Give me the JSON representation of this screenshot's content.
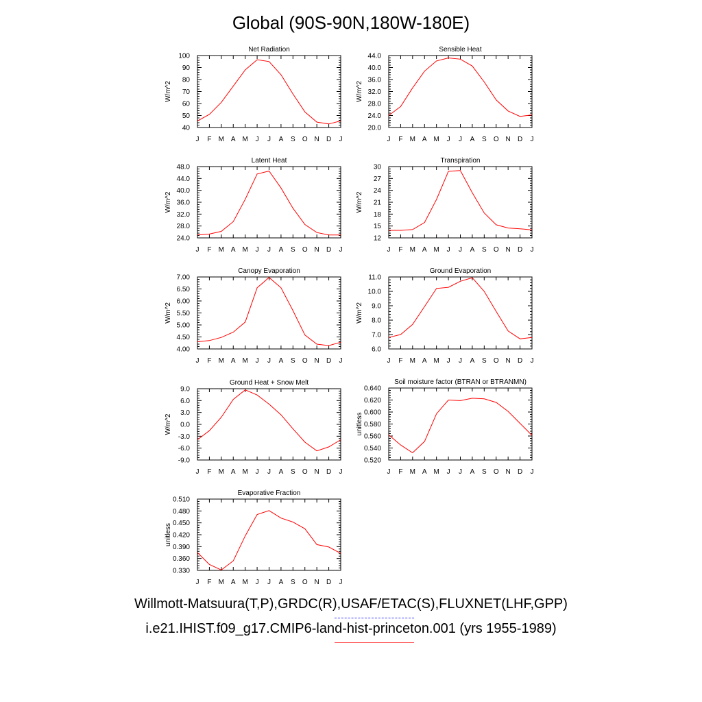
{
  "title": "Global (90S-90N,180W-180E)",
  "footer": {
    "obs_sources": "Willmott-Matsuura(T,P),GRDC(R),USAF/ETAC(S),FLUXNET(LHF,GPP)",
    "case": "i.e21.IHIST.f09_g17.CMIP6-land-hist-princeton.001 (yrs 1955-1989)"
  },
  "colors": {
    "model": "#ff0000",
    "obs": "#3333ff",
    "axis": "#000000"
  },
  "chart_data": [
    {
      "type": "line",
      "title": "Net Radiation",
      "ylabel": "W/m^2",
      "x": [
        "J",
        "F",
        "M",
        "A",
        "M",
        "J",
        "J",
        "A",
        "S",
        "O",
        "N",
        "D",
        "J"
      ],
      "ylim": [
        40,
        100
      ],
      "yticks": [
        "40",
        "50",
        "60",
        "70",
        "80",
        "90",
        "100"
      ],
      "series": [
        {
          "values": [
            45.5,
            51,
            61,
            74.5,
            88,
            96.5,
            95,
            84,
            68,
            53,
            44.5,
            43,
            45.5
          ]
        }
      ]
    },
    {
      "type": "line",
      "title": "Sensible Heat",
      "ylabel": "W/m^2",
      "x": [
        "J",
        "F",
        "M",
        "A",
        "M",
        "J",
        "J",
        "A",
        "S",
        "O",
        "N",
        "D",
        "J"
      ],
      "ylim": [
        20,
        44
      ],
      "yticks": [
        "20.0",
        "24.0",
        "28.0",
        "32.0",
        "36.0",
        "40.0",
        "44.0"
      ],
      "series": [
        {
          "values": [
            24,
            27,
            33.2,
            38.8,
            42.2,
            43.2,
            42.8,
            40.5,
            35.2,
            29.2,
            25.5,
            23.7,
            24.2
          ]
        }
      ]
    },
    {
      "type": "line",
      "title": "Latent Heat",
      "ylabel": "W/m^2",
      "x": [
        "J",
        "F",
        "M",
        "A",
        "M",
        "J",
        "J",
        "A",
        "S",
        "O",
        "N",
        "D",
        "J"
      ],
      "ylim": [
        24,
        48
      ],
      "yticks": [
        "24.0",
        "28.0",
        "32.0",
        "36.0",
        "40.0",
        "44.0",
        "48.0"
      ],
      "series": [
        {
          "values": [
            25,
            25.3,
            26.2,
            29.5,
            37,
            45.5,
            46.5,
            40.8,
            34,
            28.5,
            25.8,
            25,
            25
          ]
        }
      ]
    },
    {
      "type": "line",
      "title": "Transpiration",
      "ylabel": "W/m^2",
      "x": [
        "J",
        "F",
        "M",
        "A",
        "M",
        "J",
        "J",
        "A",
        "S",
        "O",
        "N",
        "D",
        "J"
      ],
      "ylim": [
        12,
        30
      ],
      "yticks": [
        "12",
        "15",
        "18",
        "21",
        "24",
        "27",
        "30"
      ],
      "series": [
        {
          "values": [
            13.9,
            13.9,
            14.1,
            15.9,
            21.7,
            28.8,
            29,
            23.4,
            18.3,
            15.3,
            14.5,
            14.3,
            14
          ]
        }
      ]
    },
    {
      "type": "line",
      "title": "Canopy Evaporation",
      "ylabel": "W/m^2",
      "x": [
        "J",
        "F",
        "M",
        "A",
        "M",
        "J",
        "J",
        "A",
        "S",
        "O",
        "N",
        "D",
        "J"
      ],
      "ylim": [
        4,
        7
      ],
      "yticks": [
        "4.00",
        "4.50",
        "5.00",
        "5.50",
        "6.00",
        "6.50",
        "7.00"
      ],
      "series": [
        {
          "values": [
            4.3,
            4.35,
            4.48,
            4.7,
            5.12,
            6.55,
            6.98,
            6.55,
            5.6,
            4.58,
            4.2,
            4.14,
            4.28
          ]
        }
      ]
    },
    {
      "type": "line",
      "title": "Ground Evaporation",
      "ylabel": "W/m^2",
      "x": [
        "J",
        "F",
        "M",
        "A",
        "M",
        "J",
        "J",
        "A",
        "S",
        "O",
        "N",
        "D",
        "J"
      ],
      "ylim": [
        6,
        11
      ],
      "yticks": [
        "6.0",
        "7.0",
        "8.0",
        "9.0",
        "10.0",
        "11.0"
      ],
      "series": [
        {
          "values": [
            6.8,
            7.0,
            7.7,
            8.95,
            10.2,
            10.28,
            10.7,
            10.95,
            10,
            8.6,
            7.25,
            6.7,
            6.8
          ]
        }
      ]
    },
    {
      "type": "line",
      "title": "Ground Heat + Snow Melt",
      "ylabel": "W/m^2",
      "x": [
        "J",
        "F",
        "M",
        "A",
        "M",
        "J",
        "J",
        "A",
        "S",
        "O",
        "N",
        "D",
        "J"
      ],
      "ylim": [
        -9,
        9
      ],
      "yticks": [
        "-9.0",
        "-6.0",
        "-3.0",
        "0.0",
        "3.0",
        "6.0",
        "9.0"
      ],
      "series": [
        {
          "values": [
            -3.9,
            -1.6,
            1.8,
            6.3,
            8.7,
            7.4,
            5.1,
            2.4,
            -1.1,
            -4.5,
            -6.7,
            -5.7,
            -3.9
          ]
        }
      ]
    },
    {
      "type": "line",
      "title": "Soil moisture factor (BTRAN or BTRANMN)",
      "ylabel": "unitless",
      "x": [
        "J",
        "F",
        "M",
        "A",
        "M",
        "J",
        "J",
        "A",
        "S",
        "O",
        "N",
        "D",
        "J"
      ],
      "ylim": [
        0.52,
        0.64
      ],
      "yticks": [
        "0.520",
        "0.540",
        "0.560",
        "0.580",
        "0.600",
        "0.620",
        "0.640"
      ],
      "series": [
        {
          "values": [
            0.562,
            0.545,
            0.532,
            0.551,
            0.597,
            0.62,
            0.619,
            0.623,
            0.622,
            0.616,
            0.601,
            0.581,
            0.561
          ]
        }
      ]
    },
    {
      "type": "line",
      "title": "Evaporative Fraction",
      "ylabel": "unitless",
      "x": [
        "J",
        "F",
        "M",
        "A",
        "M",
        "J",
        "J",
        "A",
        "S",
        "O",
        "N",
        "D",
        "J"
      ],
      "ylim": [
        0.33,
        0.51
      ],
      "yticks": [
        "0.330",
        "0.360",
        "0.390",
        "0.420",
        "0.450",
        "0.480",
        "0.510"
      ],
      "series": [
        {
          "values": [
            0.375,
            0.345,
            0.331,
            0.354,
            0.417,
            0.471,
            0.481,
            0.462,
            0.452,
            0.435,
            0.395,
            0.389,
            0.373
          ]
        }
      ]
    }
  ]
}
